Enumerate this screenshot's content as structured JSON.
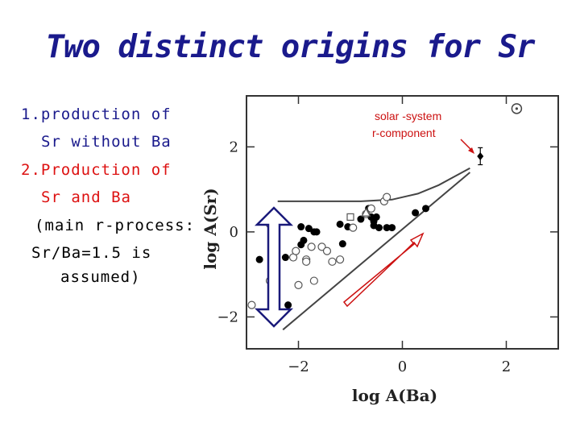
{
  "slide": {
    "title": "Two distinct origins for Sr",
    "item1": {
      "number": "1.",
      "line1": "production of",
      "line2": "Sr without Ba"
    },
    "item2": {
      "number": "2.",
      "line1": "Production of",
      "line2": "Sr and Ba"
    },
    "note": {
      "line1": "(main r-process:",
      "line2": "Sr/Ba=1.5 is",
      "line3": "assumed)"
    }
  },
  "colors": {
    "title": "#1a1a8c",
    "item1": "#1a1a8c",
    "item2": "#dd1111",
    "text": "#000000",
    "annotation": "#cc1111",
    "arrow_vertical": "#1a1a7a",
    "arrow_diagonal": "#cc1111"
  },
  "chart_data": {
    "type": "scatter",
    "xlabel": "log A(Ba)",
    "ylabel": "log A(Sr)",
    "xlim": [
      -3.0,
      3.0
    ],
    "ylim": [
      -2.75,
      3.2
    ],
    "xticks": [
      -2,
      0,
      2
    ],
    "yticks": [
      -2,
      0,
      2
    ],
    "xtick_labels": [
      "−2",
      "0",
      "2"
    ],
    "ytick_labels": [
      "−2",
      "0",
      "2"
    ],
    "annotation": {
      "line1": "solar -system",
      "line2": "r-component"
    },
    "series": [
      {
        "marker": "filled-circle",
        "points": [
          [
            -2.75,
            -0.65
          ],
          [
            -2.5,
            -0.72
          ],
          [
            -2.25,
            -0.6
          ],
          [
            -2.2,
            -1.72
          ],
          [
            -1.95,
            0.12
          ],
          [
            -1.8,
            0.08
          ],
          [
            -1.7,
            0.0
          ],
          [
            -1.65,
            0.0
          ],
          [
            -1.95,
            -0.3
          ],
          [
            -1.9,
            -0.2
          ],
          [
            -1.2,
            0.18
          ],
          [
            -1.15,
            -0.28
          ],
          [
            -1.05,
            0.12
          ],
          [
            -0.8,
            0.3
          ],
          [
            -0.65,
            0.55
          ],
          [
            -0.6,
            0.35
          ],
          [
            -0.55,
            0.25
          ],
          [
            -0.5,
            0.35
          ],
          [
            -0.45,
            0.1
          ],
          [
            -0.55,
            0.15
          ],
          [
            -0.3,
            0.1
          ],
          [
            -0.2,
            0.1
          ],
          [
            0.25,
            0.45
          ],
          [
            0.45,
            0.55
          ]
        ]
      },
      {
        "marker": "open-circle",
        "points": [
          [
            -2.9,
            -1.72
          ],
          [
            -2.55,
            0.18
          ],
          [
            -2.55,
            -1.15
          ],
          [
            -2.4,
            -1.92
          ],
          [
            -2.1,
            -0.6
          ],
          [
            -2.05,
            -0.45
          ],
          [
            -2.0,
            -1.25
          ],
          [
            -1.85,
            -0.65
          ],
          [
            -1.85,
            -0.7
          ],
          [
            -1.75,
            -0.35
          ],
          [
            -1.7,
            -1.15
          ],
          [
            -1.55,
            -0.35
          ],
          [
            -1.45,
            -0.45
          ],
          [
            -1.35,
            -0.7
          ],
          [
            -1.2,
            -0.65
          ],
          [
            -0.95,
            0.1
          ],
          [
            -0.7,
            0.42
          ],
          [
            -0.35,
            0.72
          ],
          [
            -0.3,
            0.82
          ],
          [
            -0.6,
            0.55
          ],
          [
            -2.5,
            -0.8
          ]
        ]
      },
      {
        "marker": "open-square",
        "points": [
          [
            -1.0,
            0.35
          ]
        ]
      },
      {
        "marker": "open-triangle",
        "points": [
          [
            -0.7,
            0.45
          ]
        ]
      },
      {
        "marker": "filled-diamond",
        "points": [
          [
            1.5,
            1.78
          ]
        ],
        "error_y": 0.2
      },
      {
        "marker": "sun",
        "points": [
          [
            2.2,
            2.9
          ]
        ]
      }
    ],
    "lines": [
      {
        "style": "upper-curve",
        "points": [
          [
            -2.4,
            0.72
          ],
          [
            -0.8,
            0.72
          ],
          [
            -0.2,
            0.76
          ],
          [
            0.3,
            0.9
          ],
          [
            0.7,
            1.1
          ],
          [
            1.0,
            1.3
          ],
          [
            1.3,
            1.5
          ]
        ]
      },
      {
        "style": "lower-line",
        "points": [
          [
            -2.3,
            -2.3
          ],
          [
            1.3,
            1.4
          ]
        ]
      }
    ]
  }
}
